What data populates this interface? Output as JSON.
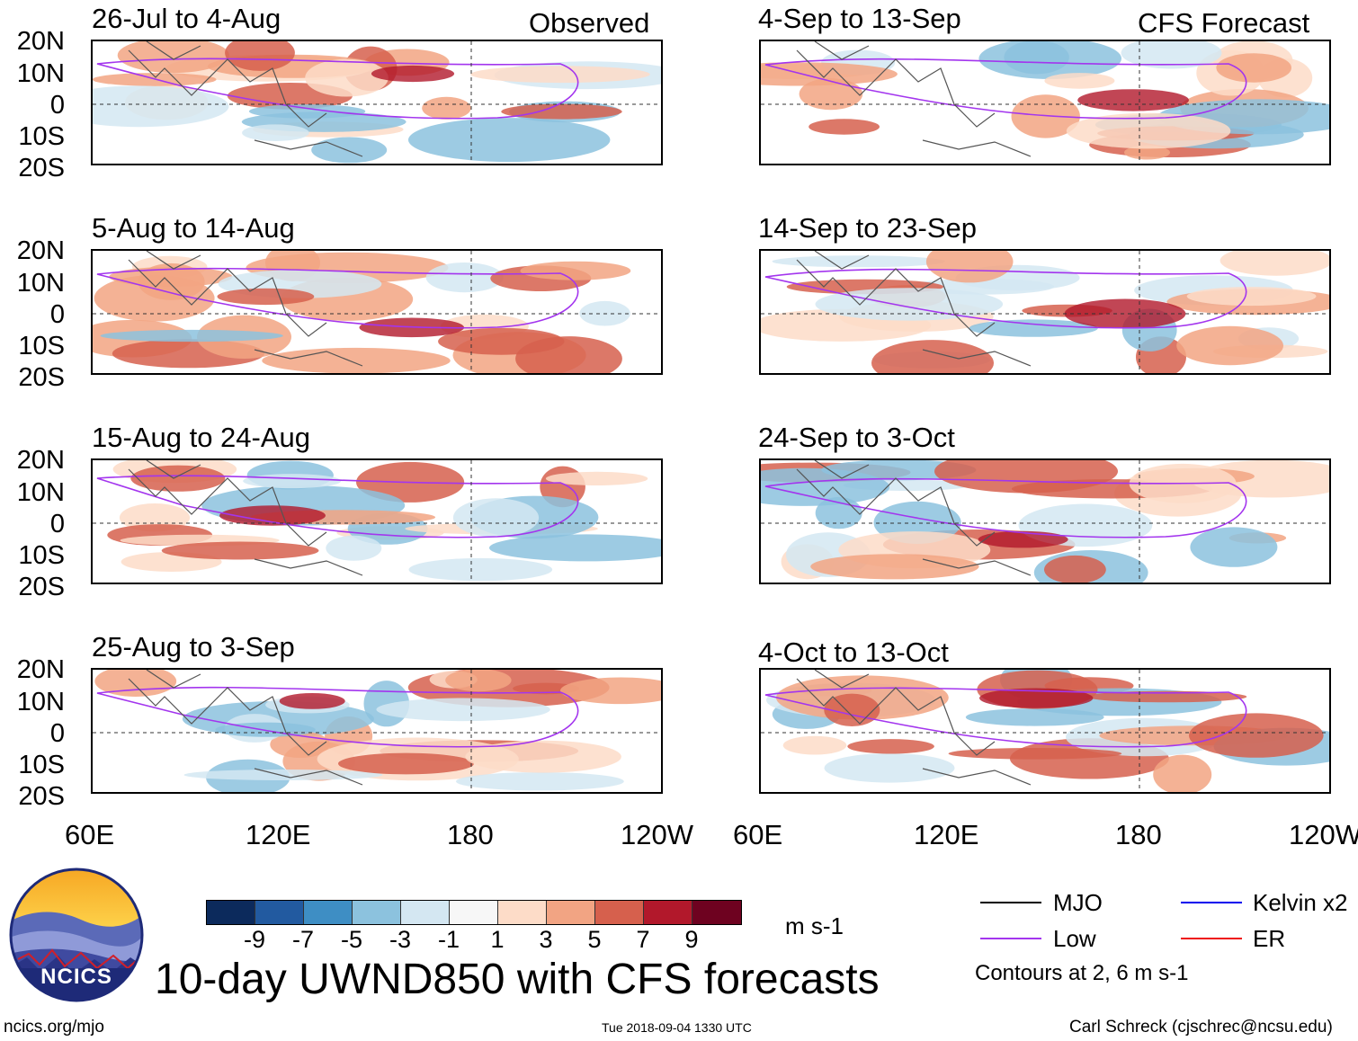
{
  "header": {
    "left_tag": "Observed",
    "right_tag": "CFS Forecast"
  },
  "panels_left": [
    {
      "title": "26-Jul to 4-Aug"
    },
    {
      "title": "5-Aug to 14-Aug"
    },
    {
      "title": "15-Aug to 24-Aug"
    },
    {
      "title": "25-Aug to 3-Sep"
    }
  ],
  "panels_right": [
    {
      "title": "4-Sep to 13-Sep"
    },
    {
      "title": "14-Sep to 23-Sep"
    },
    {
      "title": "24-Sep to 3-Oct"
    },
    {
      "title": "4-Oct to 13-Oct"
    }
  ],
  "lat_labels": [
    "20N",
    "10N",
    "0",
    "10S",
    "20S"
  ],
  "lon_labels": [
    "60E",
    "120E",
    "180",
    "120W"
  ],
  "colorbar": {
    "colors": [
      "#0c2a5c",
      "#225aa0",
      "#3e8ec4",
      "#8cc2de",
      "#d4e7f2",
      "#f7f7f7",
      "#fddcc8",
      "#f2a483",
      "#d6604d",
      "#b2182b",
      "#6e0220"
    ],
    "ticks": [
      "-9",
      "-7",
      "-5",
      "-3",
      "-1",
      "1",
      "3",
      "5",
      "7",
      "9"
    ],
    "unit": "m s-1"
  },
  "legend": {
    "items": [
      {
        "label": "MJO",
        "color": "#000000"
      },
      {
        "label": "Kelvin x2",
        "color": "#0000ee"
      },
      {
        "label": "Low",
        "color": "#a335ee"
      },
      {
        "label": "ER",
        "color": "#ee1111"
      }
    ],
    "contours_note": "Contours at 2, 6 m s-1"
  },
  "title": "10-day UWND850 with CFS forecasts",
  "footer": {
    "url": "ncics.org/mjo",
    "timestamp": "Tue 2018-09-04 1330 UTC",
    "credit": "Carl Schreck (cjschrec@ncsu.edu)"
  },
  "logo": {
    "text": "NCICS"
  }
}
